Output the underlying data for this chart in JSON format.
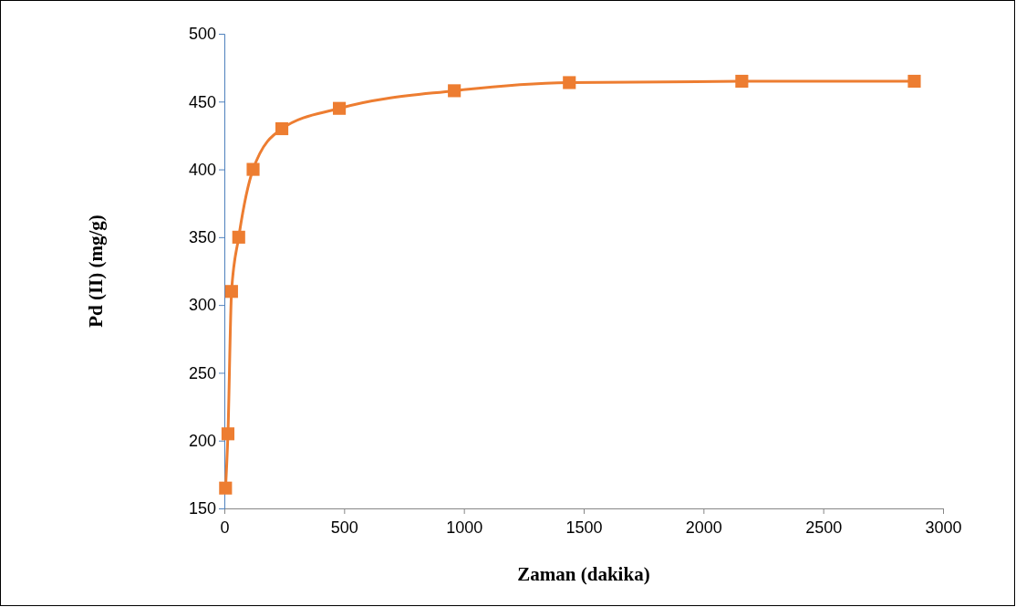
{
  "chart_data": {
    "type": "line",
    "xlabel": "Zaman (dakika)",
    "ylabel": "Pd (II) (mg/g)",
    "x": [
      5,
      15,
      30,
      60,
      120,
      240,
      480,
      960,
      1440,
      2160,
      2880
    ],
    "series": [
      {
        "color": "#ed7d31",
        "values": [
          165,
          205,
          310,
          350,
          400,
          430,
          445,
          458,
          464,
          465,
          465
        ]
      }
    ],
    "xlim": [
      0,
      3000
    ],
    "xticks": [
      0,
      500,
      1000,
      1500,
      2000,
      2500,
      3000
    ],
    "ylim": [
      150,
      500
    ],
    "yticks": [
      150,
      200,
      250,
      300,
      350,
      400,
      450,
      500
    ],
    "marker": "square",
    "line_style": "solid",
    "grid": false
  }
}
